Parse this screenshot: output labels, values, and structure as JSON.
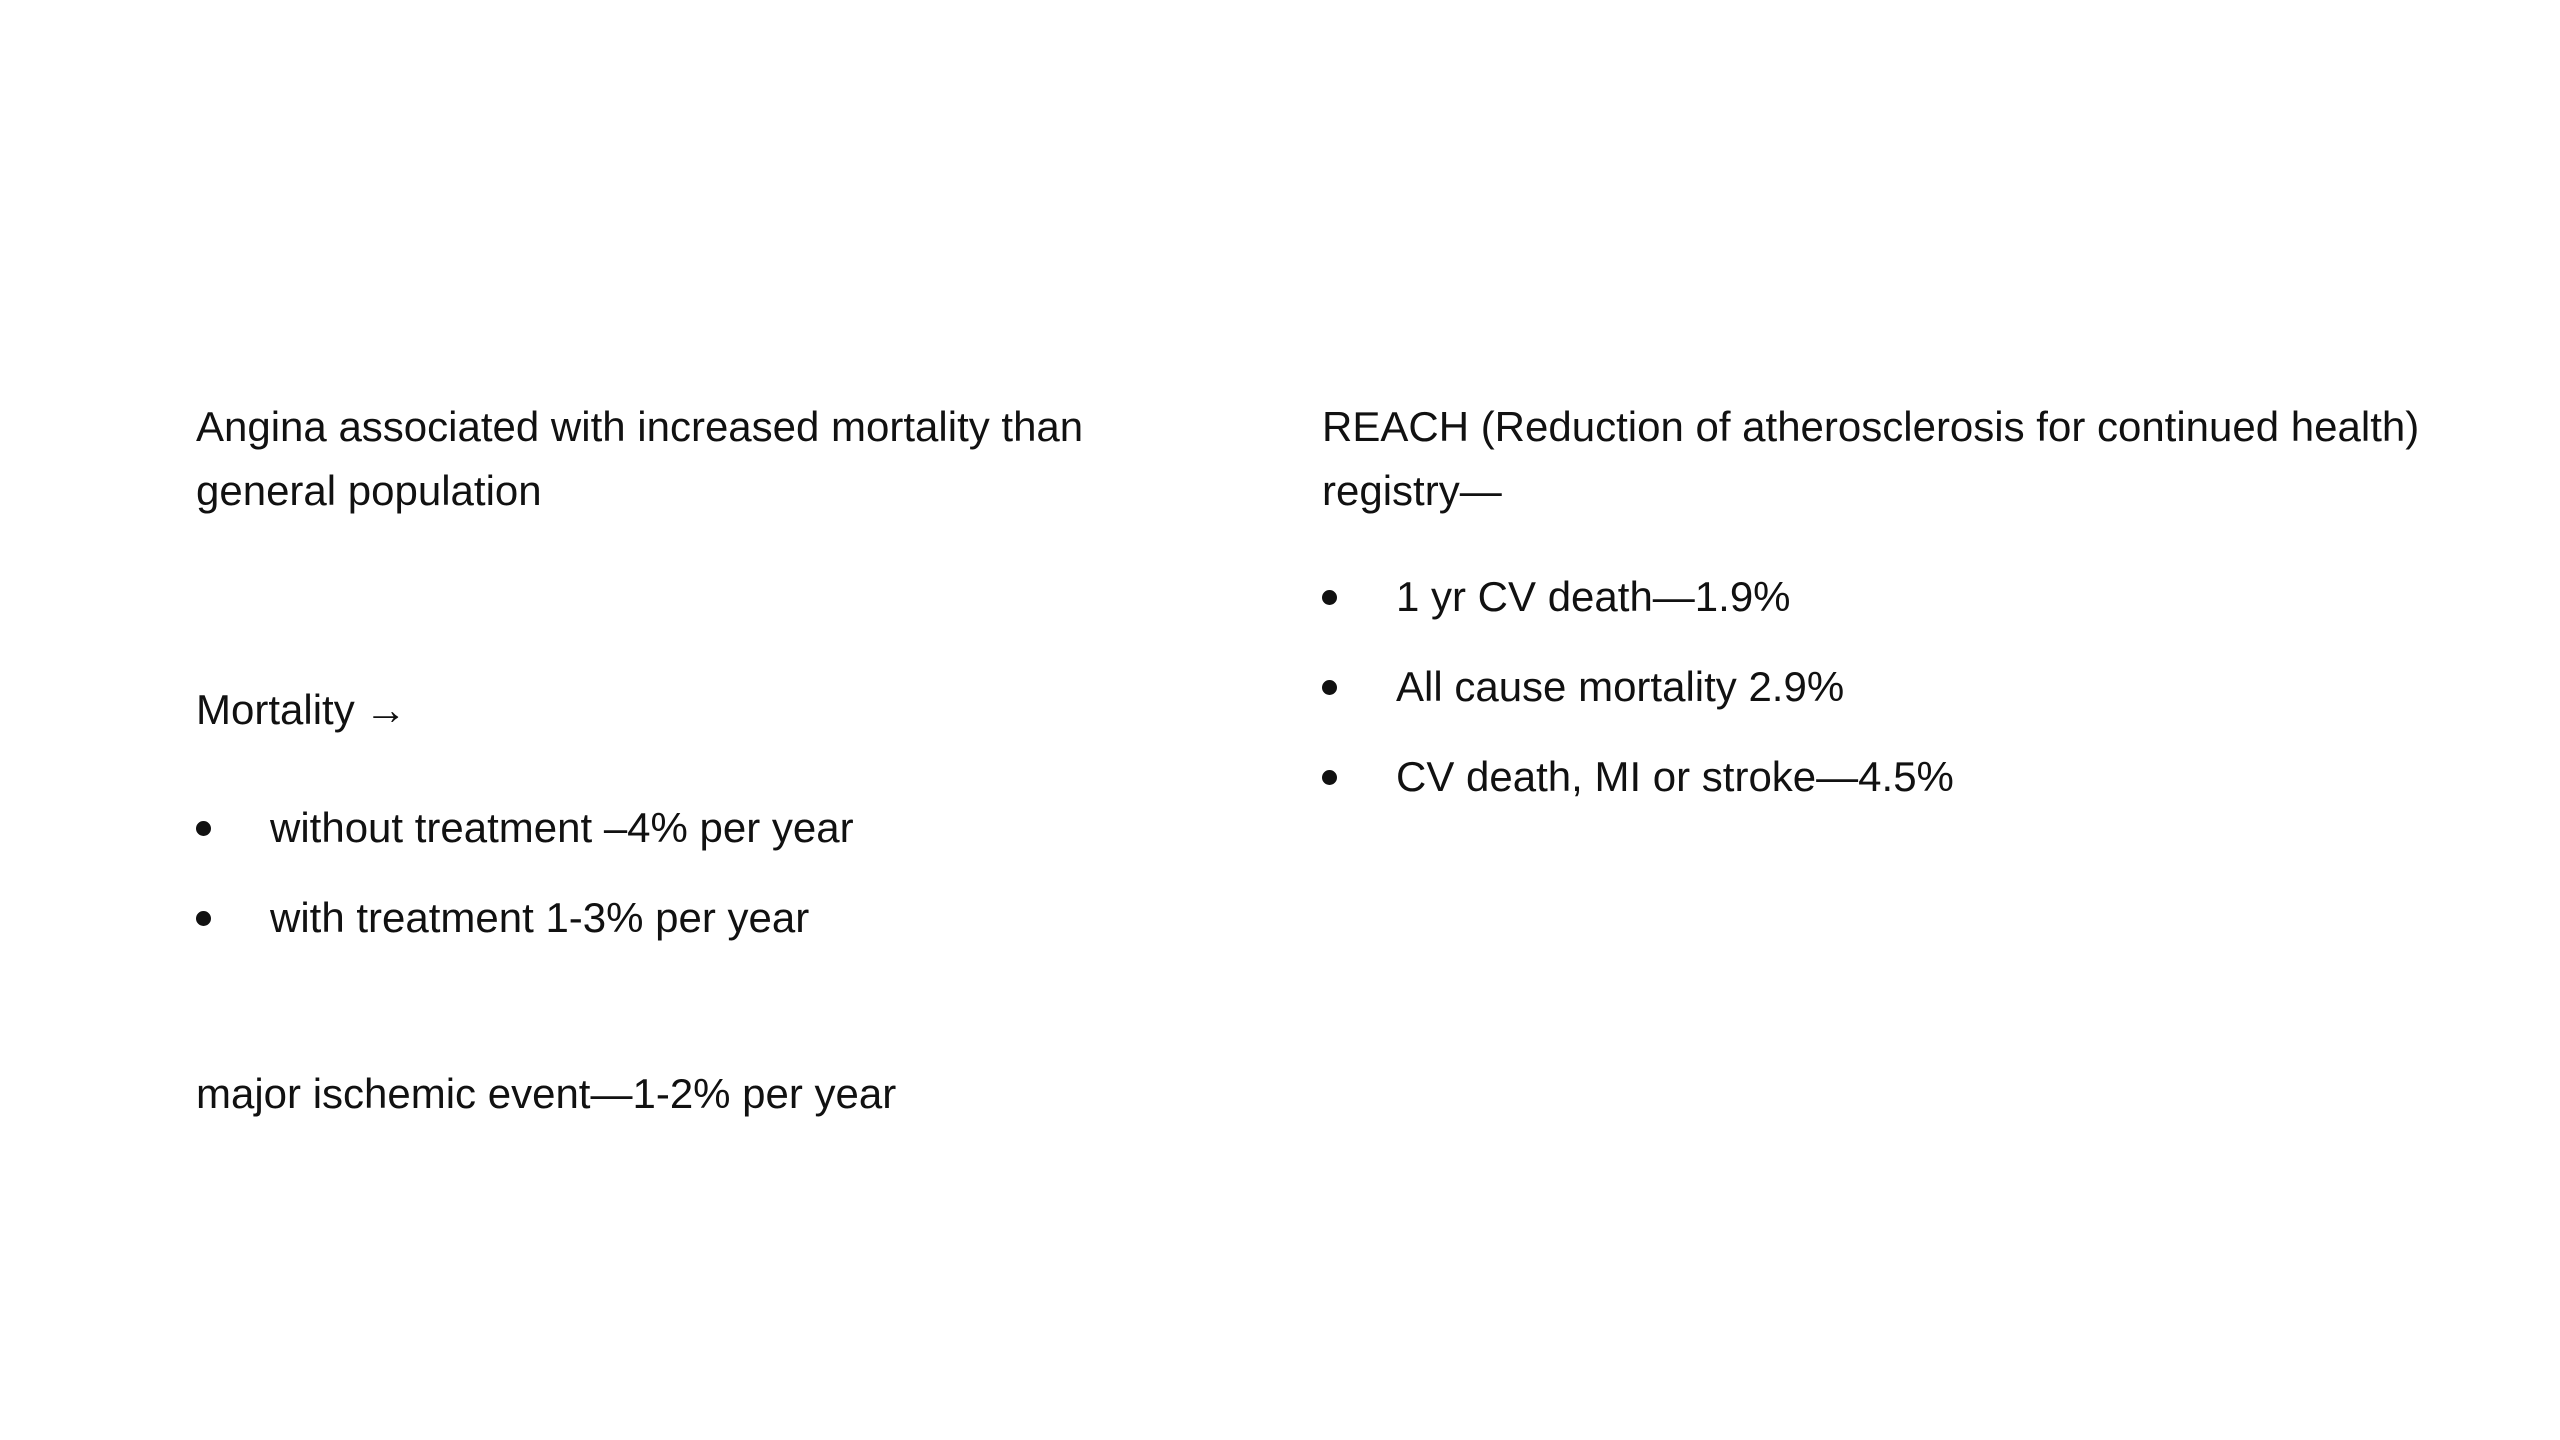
{
  "left": {
    "intro": "Angina associated with increased mortality than general population",
    "mortality_heading": "Mortality",
    "mortality_arrow": "→",
    "bullets": [
      "without treatment –4% per year",
      "with treatment 1-3% per year"
    ],
    "ischemic": "major ischemic event—1-2% per year"
  },
  "right": {
    "intro": "REACH (Reduction of atherosclerosis for continued health) registry—",
    "bullets": [
      "1 yr CV death—1.9%",
      "All cause mortality 2.9%",
      "CV death, MI or stroke—4.5%"
    ]
  }
}
